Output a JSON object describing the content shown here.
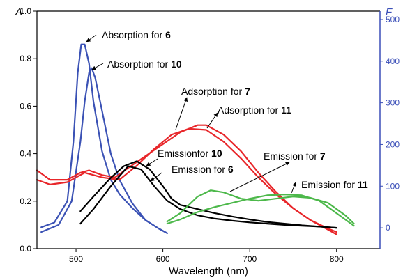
{
  "chart_data": {
    "type": "line",
    "xlabel": "Wavelength (nm)",
    "ylabel_left": "A",
    "ylabel_right": "F",
    "xlim": [
      455,
      850
    ],
    "ylim_left": [
      0.0,
      1.0
    ],
    "ylim_right": [
      -50,
      520
    ],
    "x_ticks": [
      500,
      600,
      700,
      800
    ],
    "y_left_ticks": [
      "0.0",
      "0.2",
      "0.4",
      "0.6",
      "0.8",
      "1.0"
    ],
    "y_right_ticks": [
      "0",
      "100",
      "200",
      "300",
      "400",
      "500"
    ],
    "grid": false,
    "colors": {
      "absorption": "#3b52b5",
      "adsorption": "#e8262a",
      "emission_black": "#000000",
      "emission_green": "#4cb84a",
      "right_axis": "#3b4fb8"
    },
    "series": [
      {
        "name": "Absorption for 6",
        "axis": "left",
        "color": "#3b52b5",
        "x": [
          460,
          475,
          490,
          497,
          502,
          506,
          510,
          515,
          520,
          530,
          540,
          550,
          565,
          580,
          595,
          605
        ],
        "y": [
          0.09,
          0.11,
          0.2,
          0.45,
          0.74,
          0.86,
          0.86,
          0.78,
          0.62,
          0.41,
          0.29,
          0.23,
          0.17,
          0.12,
          0.085,
          0.065
        ]
      },
      {
        "name": "Absorption for 10",
        "axis": "left",
        "color": "#3b52b5",
        "x": [
          460,
          480,
          495,
          505,
          510,
          515,
          518,
          522,
          530,
          540,
          550,
          565,
          580,
          595,
          605
        ],
        "y": [
          0.07,
          0.1,
          0.2,
          0.45,
          0.62,
          0.74,
          0.76,
          0.72,
          0.58,
          0.4,
          0.29,
          0.19,
          0.12,
          0.085,
          0.065
        ]
      },
      {
        "name": "Adsorption for 7",
        "axis": "left",
        "color": "#e8262a",
        "x": [
          455,
          470,
          490,
          510,
          530,
          550,
          570,
          590,
          610,
          630,
          650,
          670,
          690,
          710,
          730,
          750,
          770,
          790,
          800
        ],
        "y": [
          0.29,
          0.27,
          0.28,
          0.32,
          0.3,
          0.29,
          0.35,
          0.42,
          0.48,
          0.505,
          0.5,
          0.45,
          0.38,
          0.3,
          0.23,
          0.17,
          0.12,
          0.08,
          0.06
        ]
      },
      {
        "name": "Adsorption for 11",
        "axis": "left",
        "color": "#e8262a",
        "x": [
          455,
          470,
          490,
          505,
          515,
          530,
          545,
          560,
          580,
          600,
          620,
          640,
          650,
          670,
          690,
          710,
          730,
          750,
          770,
          790,
          800
        ],
        "y": [
          0.33,
          0.29,
          0.29,
          0.32,
          0.33,
          0.31,
          0.3,
          0.34,
          0.39,
          0.44,
          0.49,
          0.52,
          0.52,
          0.48,
          0.41,
          0.32,
          0.24,
          0.17,
          0.12,
          0.085,
          0.07
        ]
      },
      {
        "name": "Emission for 10",
        "axis": "right",
        "color": "#000000",
        "x": [
          505,
          520,
          540,
          560,
          575,
          590,
          605,
          620,
          640,
          660,
          680,
          700,
          720,
          740,
          760,
          780,
          800
        ],
        "y": [
          10,
          45,
          100,
          148,
          140,
          100,
          65,
          45,
          30,
          22,
          17,
          13,
          10,
          7,
          5,
          3,
          0
        ]
      },
      {
        "name": "Emission for 6",
        "axis": "right",
        "color": "#000000",
        "x": [
          505,
          520,
          540,
          555,
          570,
          585,
          600,
          610,
          620,
          640,
          660,
          680,
          700,
          720,
          740,
          760,
          780,
          800
        ],
        "y": [
          40,
          75,
          120,
          148,
          160,
          140,
          100,
          70,
          55,
          45,
          35,
          27,
          20,
          14,
          10,
          6,
          3,
          0
        ]
      },
      {
        "name": "Emission for 7",
        "axis": "right",
        "color": "#4cb84a",
        "x": [
          605,
          620,
          640,
          655,
          670,
          690,
          710,
          730,
          750,
          770,
          790,
          810,
          820
        ],
        "y": [
          15,
          35,
          75,
          90,
          85,
          70,
          65,
          70,
          75,
          72,
          60,
          30,
          10
        ]
      },
      {
        "name": "Emission for 11",
        "axis": "right",
        "color": "#4cb84a",
        "x": [
          605,
          620,
          640,
          660,
          680,
          700,
          720,
          740,
          760,
          780,
          800,
          820
        ],
        "y": [
          10,
          20,
          38,
          50,
          60,
          70,
          78,
          80,
          78,
          65,
          35,
          5
        ]
      }
    ],
    "annotations": [
      {
        "prefix": "Absorption for ",
        "num": "6"
      },
      {
        "prefix": "Absorption for ",
        "num": "10"
      },
      {
        "prefix": "Adsorption for ",
        "num": "7"
      },
      {
        "prefix": "Adsorption for ",
        "num": "11"
      },
      {
        "prefix": "Emissionfor ",
        "num": "10"
      },
      {
        "prefix": "Emission for ",
        "num": "6"
      },
      {
        "prefix": "Emission for ",
        "num": "7"
      },
      {
        "prefix": "Emission for ",
        "num": "11"
      }
    ]
  }
}
